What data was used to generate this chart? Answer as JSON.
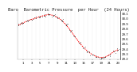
{
  "title": "Baro  Barometric Pressure  per Hour  (24 Hours)",
  "hours": [
    0,
    1,
    2,
    3,
    4,
    5,
    6,
    7,
    8,
    9,
    10,
    11,
    12,
    13,
    14,
    15,
    16,
    17,
    18,
    19,
    20,
    21,
    22,
    23
  ],
  "pressure_line": [
    29.87,
    29.91,
    29.95,
    29.98,
    30.01,
    30.04,
    30.06,
    30.08,
    30.06,
    30.02,
    29.96,
    29.87,
    29.76,
    29.64,
    29.52,
    29.42,
    29.34,
    29.28,
    29.24,
    29.22,
    29.23,
    29.28,
    29.34,
    29.38
  ],
  "ylim": [
    29.18,
    30.14
  ],
  "ytick_vals": [
    29.2,
    29.3,
    29.4,
    29.5,
    29.6,
    29.7,
    29.8,
    29.9,
    30.0,
    30.1
  ],
  "ytick_labels": [
    "29.2",
    "29.3",
    "29.4",
    "29.5",
    "29.6",
    "29.7",
    "29.8",
    "29.9",
    "30.0",
    "30.1"
  ],
  "xtick_positions": [
    1,
    3,
    5,
    7,
    9,
    11,
    13,
    15,
    17,
    19,
    21,
    23
  ],
  "xtick_labels": [
    "1",
    "3",
    "5",
    "7",
    "9",
    "11",
    "13",
    "15",
    "17",
    "19",
    "21",
    "23"
  ],
  "line_color": "#ff0000",
  "dot_color": "#444444",
  "bg_color": "#ffffff",
  "grid_color": "#cccccc",
  "title_fontsize": 4.0,
  "tick_fontsize": 2.8,
  "linewidth": 0.7
}
